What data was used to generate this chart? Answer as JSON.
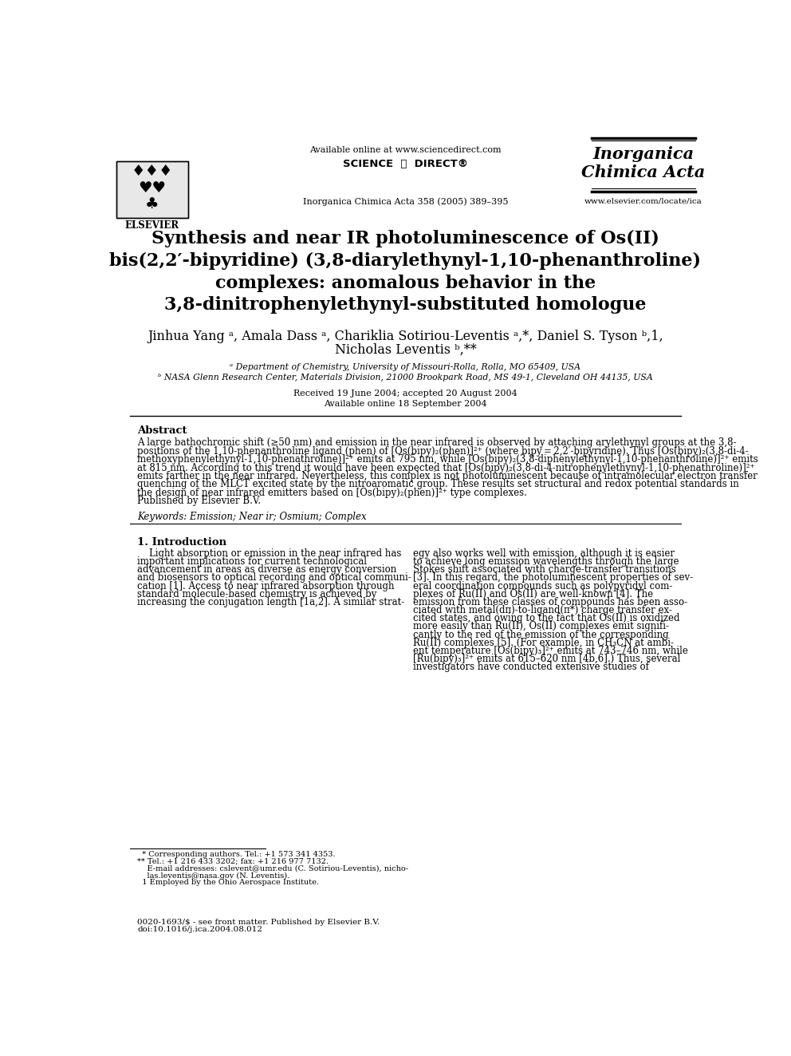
{
  "bg_color": "#ffffff",
  "header_available_online": "Available online at www.sciencedirect.com",
  "header_sciencedirect": "SCIENCE  ⓓ  DIRECT®",
  "header_journal_ref": "Inorganica Chimica Acta 358 (2005) 389–395",
  "header_journal_name_line1": "Inorganica",
  "header_journal_name_line2": "Chimica Acta",
  "header_elsevier": "ELSEVIER",
  "header_website": "www.elsevier.com/locate/ica",
  "title_line1": "Synthesis and near IR photoluminescence of Os(II)",
  "title_line2": "bis(2,2′-bipyridine) (3,8-diarylethynyl-1,10-phenanthroline)",
  "title_line3": "complexes: anomalous behavior in the",
  "title_line4": "3,8-dinitrophenylethynyl-substituted homologue",
  "authors_line1": "Jinhua Yang ᵃ, Amala Dass ᵃ, Chariklia Sotiriou-Leventis ᵃ,*, Daniel S. Tyson ᵇ,1,",
  "authors_line2": "Nicholas Leventis ᵇ,**",
  "affil_a": "ᵃ Department of Chemistry, University of Missouri-Rolla, Rolla, MO 65409, USA",
  "affil_b": "ᵇ NASA Glenn Research Center, Materials Division, 21000 Brookpark Road, MS 49-1, Cleveland OH 44135, USA",
  "received": "Received 19 June 2004; accepted 20 August 2004",
  "available_online": "Available online 18 September 2004",
  "abstract_title": "Abstract",
  "abstract_lines": [
    "A large bathochromic shift (≥50 nm) and emission in the near infrared is observed by attaching arylethynyl groups at the 3,8-",
    "positions of the 1,10-phenanthroline ligand (phen) of [Os(bipy)₂(phen)]²⁺ (where bipy = 2,2′-bipyridine). Thus [Os(bipy)₂(3,8-di-4-",
    "methoxyphenylethynyl-1,10-phenathroline)]²⁺ emits at 795 nm, while [Os(bipy)₂(3,8-diphenylethynyl-1,10-phenanthroline)]²⁺ emits",
    "at 815 nm. According to this trend it would have been expected that [Os(bipy)₂(3,8-di-4-nitrophenylethynyl-1,10-phenathroline)]²⁺",
    "emits farther in the near infrared. Nevertheless, this complex is not photoluminescent because of intramolecular electron transfer",
    "quenching of the MLCT excited state by the nitroaromatic group. These results set structural and redox potential standards in",
    "the design of near infrared emitters based on [Os(bipy)₂(phen)]²⁺ type complexes.",
    "Published by Elsevier B.V."
  ],
  "keywords": "Keywords: Emission; Near ir; Osmium; Complex",
  "section1_title": "1. Introduction",
  "col1_lines": [
    "    Light absorption or emission in the near infrared has",
    "important implications for current technological",
    "advancement in areas as diverse as energy conversion",
    "and biosensors to optical recording and optical communi-",
    "cation [1]. Access to near infrared absorption through",
    "standard molecule-based chemistry is achieved by",
    "increasing the conjugation length [1a,2]. A similar strat-"
  ],
  "col2_lines": [
    "egy also works well with emission, although it is easier",
    "to achieve long emission wavelengths through the large",
    "Stokes shift associated with charge-transfer transitions",
    "[3]. In this regard, the photoluminescent properties of sev-",
    "eral coordination compounds such as polypyridyl com-",
    "plexes of Ru(II) and Os(II) are well-known [4]. The",
    "emission from these classes of compounds has been asso-",
    "ciated with metal(dπ)-to-ligand(π*) charge transfer ex-",
    "cited states, and owing to the fact that Os(II) is oxidized",
    "more easily than Ru(II), Os(II) complexes emit signifi-",
    "cantly to the red of the emission of the corresponding",
    "Ru(II) complexes [5]. (For example, in CH₃CN at ambi-",
    "ent temperature [Os(bipy)₃]²⁺ emits at 743–746 nm, while",
    "[Ru(bipy)₃]²⁺ emits at 615–620 nm [4b,6].) Thus, several",
    "investigators have conducted extensive studies of"
  ],
  "footnote_lines": [
    "  * Corresponding authors. Tel.: +1 573 341 4353.",
    "** Tel.: +1 216 433 3202; fax: +1 216 977 7132.",
    "    E-mail addresses: cslevent@umr.edu (C. Sotiriou-Leventis), nicho-",
    "    las.leventis@nasa.gov (N. Leventis).",
    "  1 Employed by the Ohio Aerospace Institute."
  ],
  "footer_lines": [
    "0020-1693/$ - see front matter. Published by Elsevier B.V.",
    "doi:10.1016/j.ica.2004.08.012"
  ]
}
